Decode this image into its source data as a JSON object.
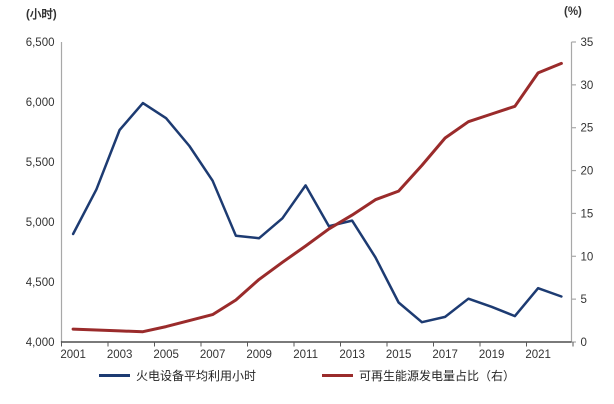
{
  "chart_data": {
    "type": "line",
    "title": "",
    "x": [
      2001,
      2002,
      2003,
      2004,
      2005,
      2006,
      2007,
      2008,
      2009,
      2010,
      2011,
      2012,
      2013,
      2014,
      2015,
      2016,
      2017,
      2018,
      2019,
      2020,
      2021,
      2022
    ],
    "x_tick_labels": [
      "2001",
      "2003",
      "2005",
      "2007",
      "2009",
      "2011",
      "2013",
      "2015",
      "2017",
      "2019",
      "2021"
    ],
    "left_axis": {
      "unit": "(小时)",
      "min": 4000,
      "max": 6500,
      "tick_values": [
        6500,
        6000,
        5500,
        5000,
        4500,
        4000
      ],
      "tick_labels": [
        "6,500",
        "6,000",
        "5,500",
        "5,000",
        "4,500",
        "4,000"
      ]
    },
    "right_axis": {
      "unit": "(%)",
      "min": 0,
      "max": 35,
      "tick_values": [
        35,
        30,
        25,
        20,
        15,
        10,
        5,
        0
      ],
      "tick_labels": [
        "35",
        "30",
        "25",
        "20",
        "15",
        "10",
        "5",
        "0"
      ]
    },
    "series": [
      {
        "name": "火电设备平均利用小时",
        "axis": "left",
        "color": "#1d3b72",
        "values": [
          4900,
          5272,
          5767,
          5991,
          5865,
          5633,
          5344,
          4885,
          4865,
          5031,
          5305,
          4965,
          5012,
          4706,
          4329,
          4165,
          4209,
          4361,
          4293,
          4216,
          4448,
          4379
        ]
      },
      {
        "name": "可再生能源发电量占比（右）",
        "axis": "right",
        "color": "#9a2b2b",
        "values": [
          1.5,
          1.4,
          1.3,
          1.2,
          1.8,
          2.5,
          3.2,
          4.9,
          7.3,
          9.3,
          11.2,
          13.2,
          14.8,
          16.6,
          17.6,
          20.6,
          23.8,
          25.7,
          26.6,
          27.5,
          31.4,
          32.5
        ]
      }
    ],
    "legend_position": "bottom",
    "grid": false
  }
}
